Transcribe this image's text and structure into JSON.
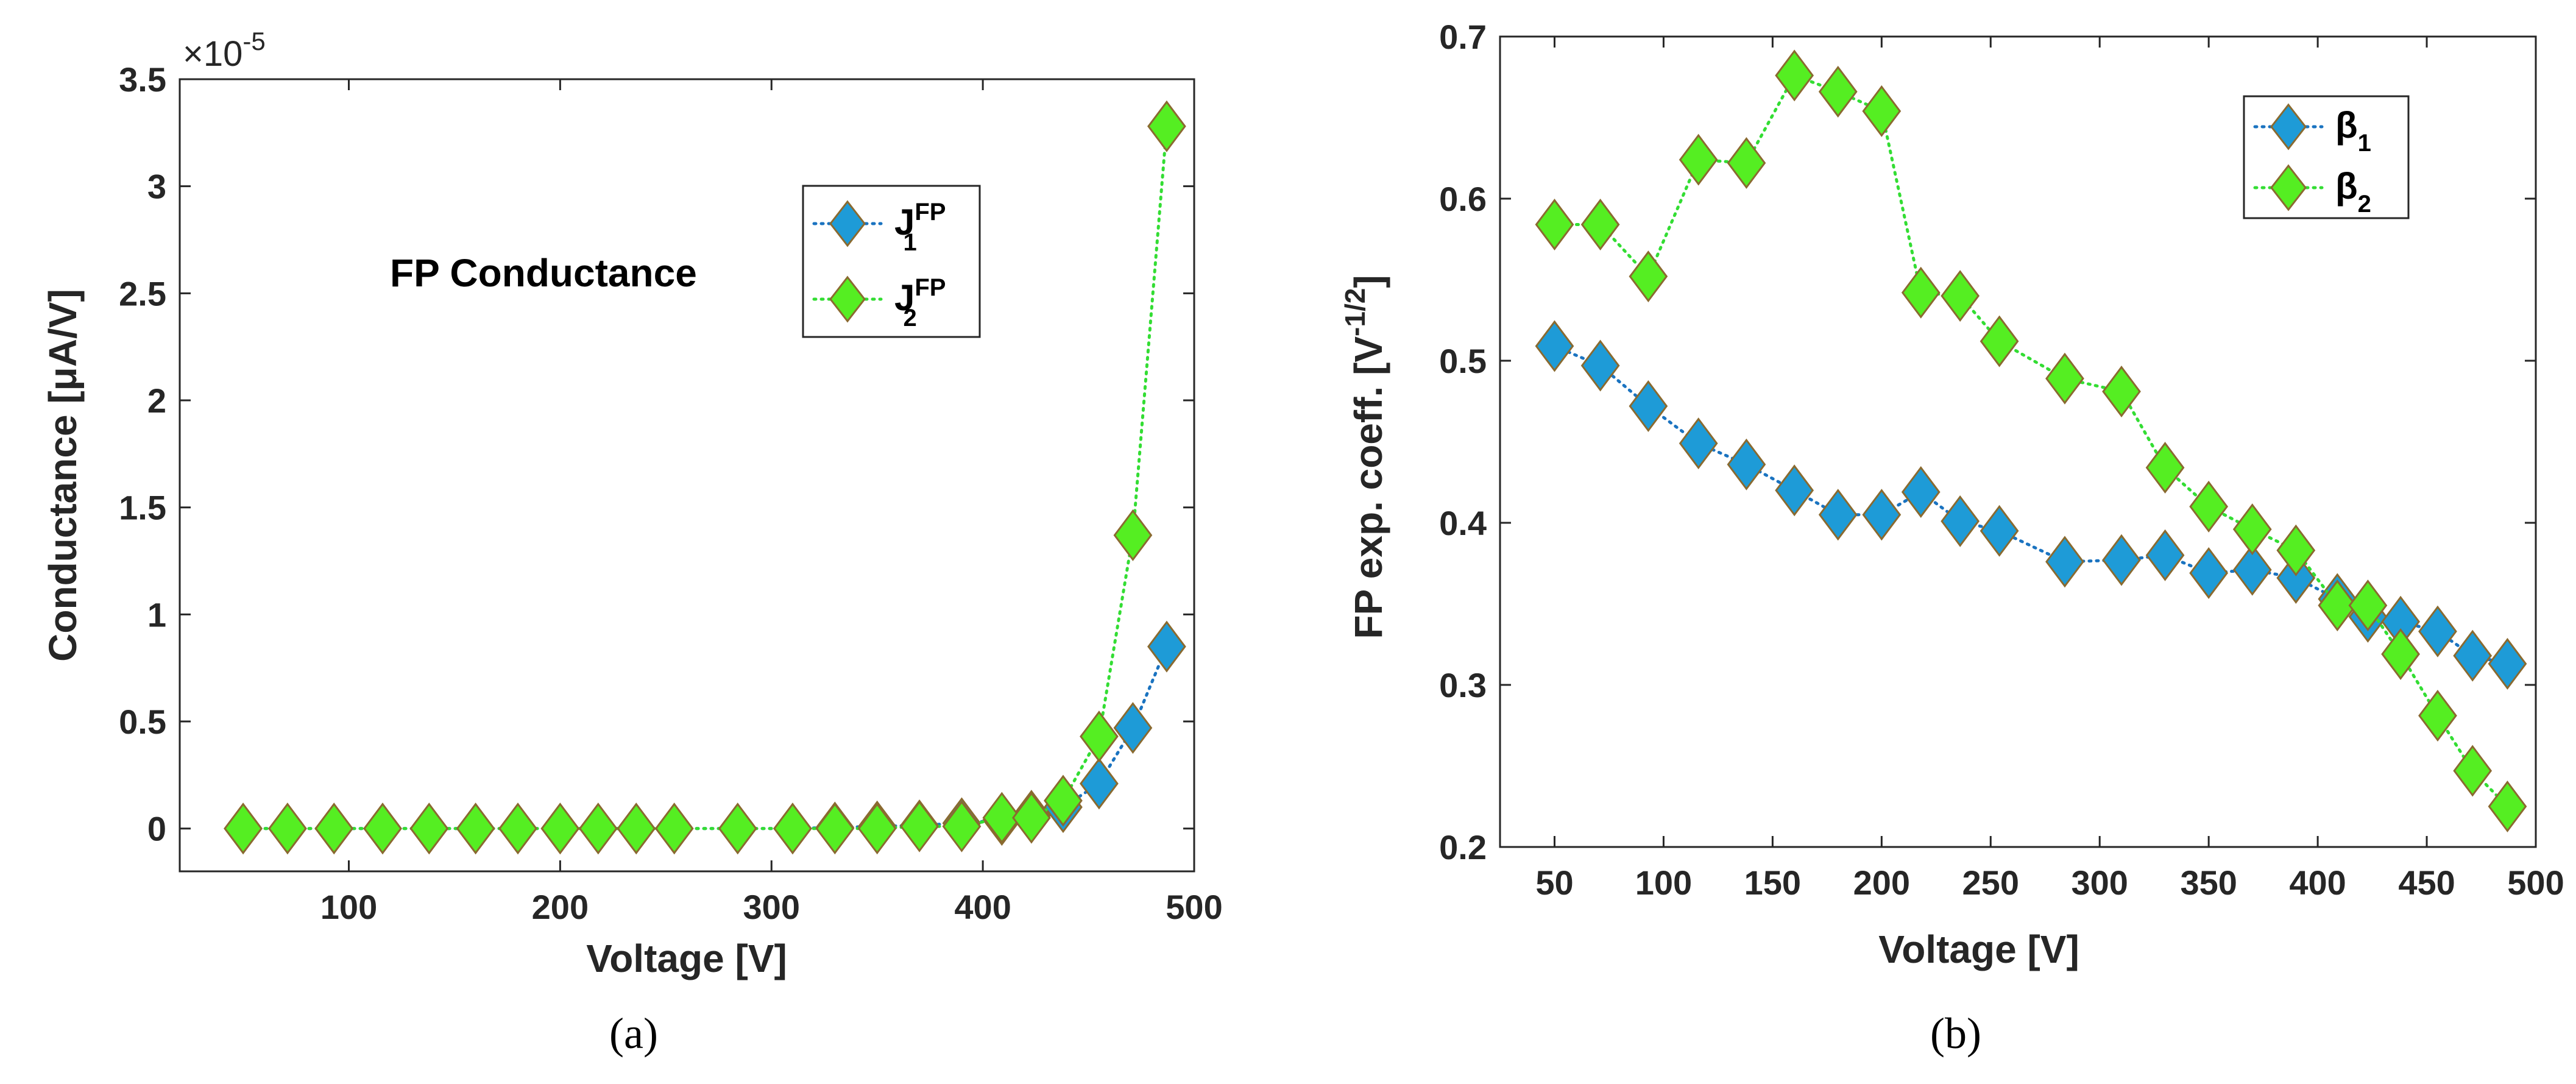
{
  "colors": {
    "series1": "#1e9bd7",
    "series2": "#55ee22",
    "marker_edge": "#8a6a30",
    "line1": "#1a73c0",
    "line2": "#33dd33"
  },
  "chart_data": [
    {
      "type": "line",
      "panel": "a",
      "caption": "(a)",
      "annotation": "FP Conductance",
      "xlabel": "Voltage [V]",
      "ylabel": "Conductance [μA/V]",
      "y_exponent_label": "×10",
      "y_exponent_power": "-5",
      "xlim": [
        20,
        500
      ],
      "ylim": [
        -0.2,
        3.5
      ],
      "xticks": [
        100,
        200,
        300,
        400,
        500
      ],
      "xtick_labels": [
        "100",
        "200",
        "300",
        "400",
        "500"
      ],
      "yticks": [
        0,
        0.5,
        1,
        1.5,
        2,
        2.5,
        3,
        3.5
      ],
      "ytick_labels": [
        "0",
        "0.5",
        "1",
        "1.5",
        "2",
        "2.5",
        "3",
        "3.5"
      ],
      "legend_position": "upper-right",
      "x": [
        50,
        71,
        93,
        116,
        138,
        160,
        180,
        200,
        218,
        236,
        254,
        284,
        310,
        330,
        350,
        370,
        390,
        409,
        423,
        438,
        455,
        471,
        487
      ],
      "series": [
        {
          "name": "J",
          "sub": "1",
          "sup": "FP",
          "values": [
            0,
            0,
            0,
            0,
            0,
            0,
            0,
            0,
            0,
            0,
            0,
            0,
            0,
            0.005,
            0.01,
            0.015,
            0.025,
            0.04,
            0.06,
            0.1,
            0.21,
            0.47,
            0.85
          ]
        },
        {
          "name": "J",
          "sub": "2",
          "sup": "FP",
          "values": [
            0,
            0,
            0,
            0,
            0,
            0,
            0,
            0,
            0,
            0,
            0,
            0,
            0,
            0,
            0,
            0.01,
            0.01,
            0.05,
            0.05,
            0.13,
            0.43,
            1.37,
            3.28
          ]
        }
      ]
    },
    {
      "type": "line",
      "panel": "b",
      "caption": "(b)",
      "xlabel": "Voltage [V]",
      "ylabel": "FP exp. coeff. [V",
      "ylabel_sup": "-1/2",
      "ylabel_end": "]",
      "xlim": [
        25,
        500
      ],
      "ylim": [
        0.2,
        0.7
      ],
      "xticks": [
        50,
        100,
        150,
        200,
        250,
        300,
        350,
        400,
        450,
        500
      ],
      "xtick_labels": [
        "50",
        "100",
        "150",
        "200",
        "250",
        "300",
        "350",
        "400",
        "450",
        "500"
      ],
      "yticks": [
        0.2,
        0.3,
        0.4,
        0.5,
        0.6,
        0.7
      ],
      "ytick_labels": [
        "0.2",
        "0.3",
        "0.4",
        "0.5",
        "0.6",
        "0.7"
      ],
      "legend_position": "upper-right",
      "x": [
        50,
        71,
        93,
        116,
        138,
        160,
        180,
        200,
        218,
        236,
        254,
        284,
        310,
        330,
        350,
        370,
        390,
        409,
        423,
        438,
        455,
        471,
        487
      ],
      "series": [
        {
          "name": "β",
          "sub": "1",
          "values": [
            0.509,
            0.497,
            0.472,
            0.449,
            0.436,
            0.42,
            0.405,
            0.405,
            0.419,
            0.401,
            0.395,
            0.376,
            0.377,
            0.38,
            0.369,
            0.371,
            0.366,
            0.353,
            0.342,
            0.339,
            0.333,
            0.318,
            0.313
          ]
        },
        {
          "name": "β",
          "sub": "2",
          "values": [
            0.584,
            0.584,
            0.552,
            0.624,
            0.622,
            0.676,
            0.666,
            0.654,
            0.542,
            0.54,
            0.512,
            0.489,
            0.481,
            0.434,
            0.41,
            0.396,
            0.383,
            0.349,
            0.349,
            0.319,
            0.281,
            0.247,
            0.225
          ]
        }
      ]
    }
  ]
}
